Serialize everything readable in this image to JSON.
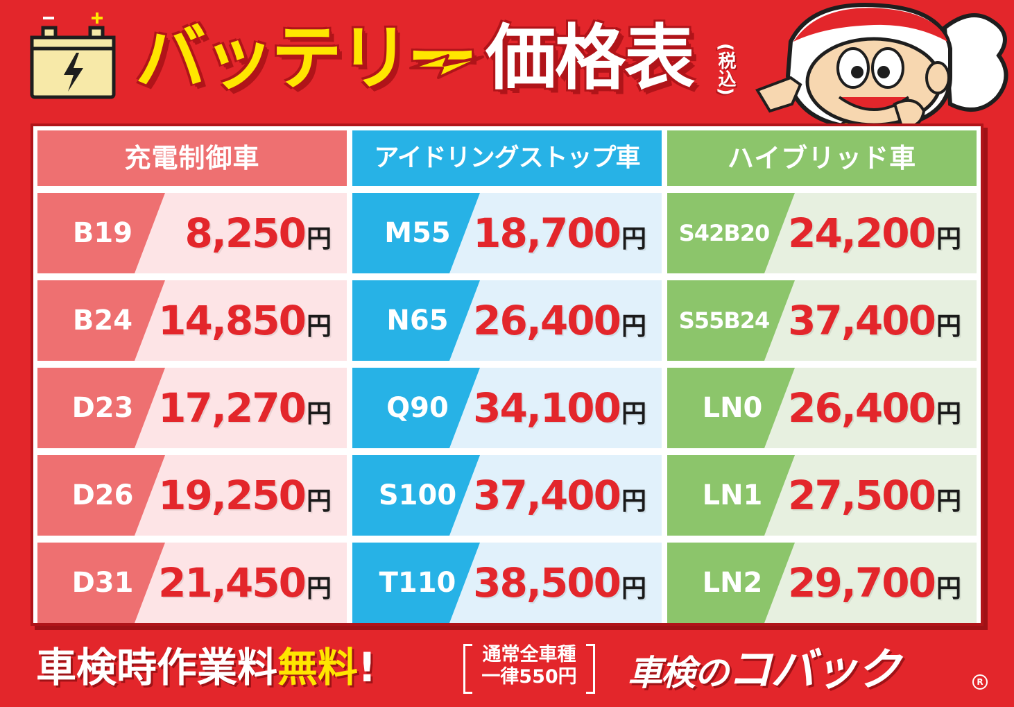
{
  "title": {
    "main_yellow": "バッテリー",
    "main_white": "価格表",
    "tax_note": "(税込)"
  },
  "columns": [
    {
      "header": "充電制御車",
      "header_color": "#ee7071",
      "code_color": "#ee7071",
      "price_bg": "#fde4e6",
      "rows": [
        {
          "code": "B19",
          "price": "8,250",
          "unit": "円"
        },
        {
          "code": "B24",
          "price": "14,850",
          "unit": "円"
        },
        {
          "code": "D23",
          "price": "17,270",
          "unit": "円"
        },
        {
          "code": "D26",
          "price": "19,250",
          "unit": "円"
        },
        {
          "code": "D31",
          "price": "21,450",
          "unit": "円"
        }
      ]
    },
    {
      "header": "アイドリングストップ車",
      "header_color": "#27b2e6",
      "code_color": "#27b2e6",
      "price_bg": "#e1f1fb",
      "rows": [
        {
          "code": "M55",
          "price": "18,700",
          "unit": "円"
        },
        {
          "code": "N65",
          "price": "26,400",
          "unit": "円"
        },
        {
          "code": "Q90",
          "price": "34,100",
          "unit": "円"
        },
        {
          "code": "S100",
          "price": "37,400",
          "unit": "円"
        },
        {
          "code": "T110",
          "price": "38,500",
          "unit": "円"
        }
      ]
    },
    {
      "header": "ハイブリッド車",
      "header_color": "#8cc56b",
      "code_color": "#8cc56b",
      "price_bg": "#e7f0e0",
      "rows": [
        {
          "code": "S42B20",
          "price": "24,200",
          "unit": "円"
        },
        {
          "code": "S55B24",
          "price": "37,400",
          "unit": "円"
        },
        {
          "code": "LN0",
          "price": "26,400",
          "unit": "円"
        },
        {
          "code": "LN1",
          "price": "27,500",
          "unit": "円"
        },
        {
          "code": "LN2",
          "price": "29,700",
          "unit": "円"
        }
      ]
    }
  ],
  "footer": {
    "promo_white": "車検時作業料",
    "promo_yellow": "無料",
    "promo_mark": "!",
    "note_line1": "通常全車種",
    "note_line2": "一律550円",
    "brand_prefix": "車検の",
    "brand_name": "コバック",
    "registered": "R"
  },
  "icons": {
    "battery": "battery-icon",
    "bolt": "lightning-bolt-icon",
    "mascot": "mascot-illustration"
  },
  "colors": {
    "background": "#e3262b",
    "title_yellow": "#ffe600",
    "price_red": "#e3262b"
  }
}
